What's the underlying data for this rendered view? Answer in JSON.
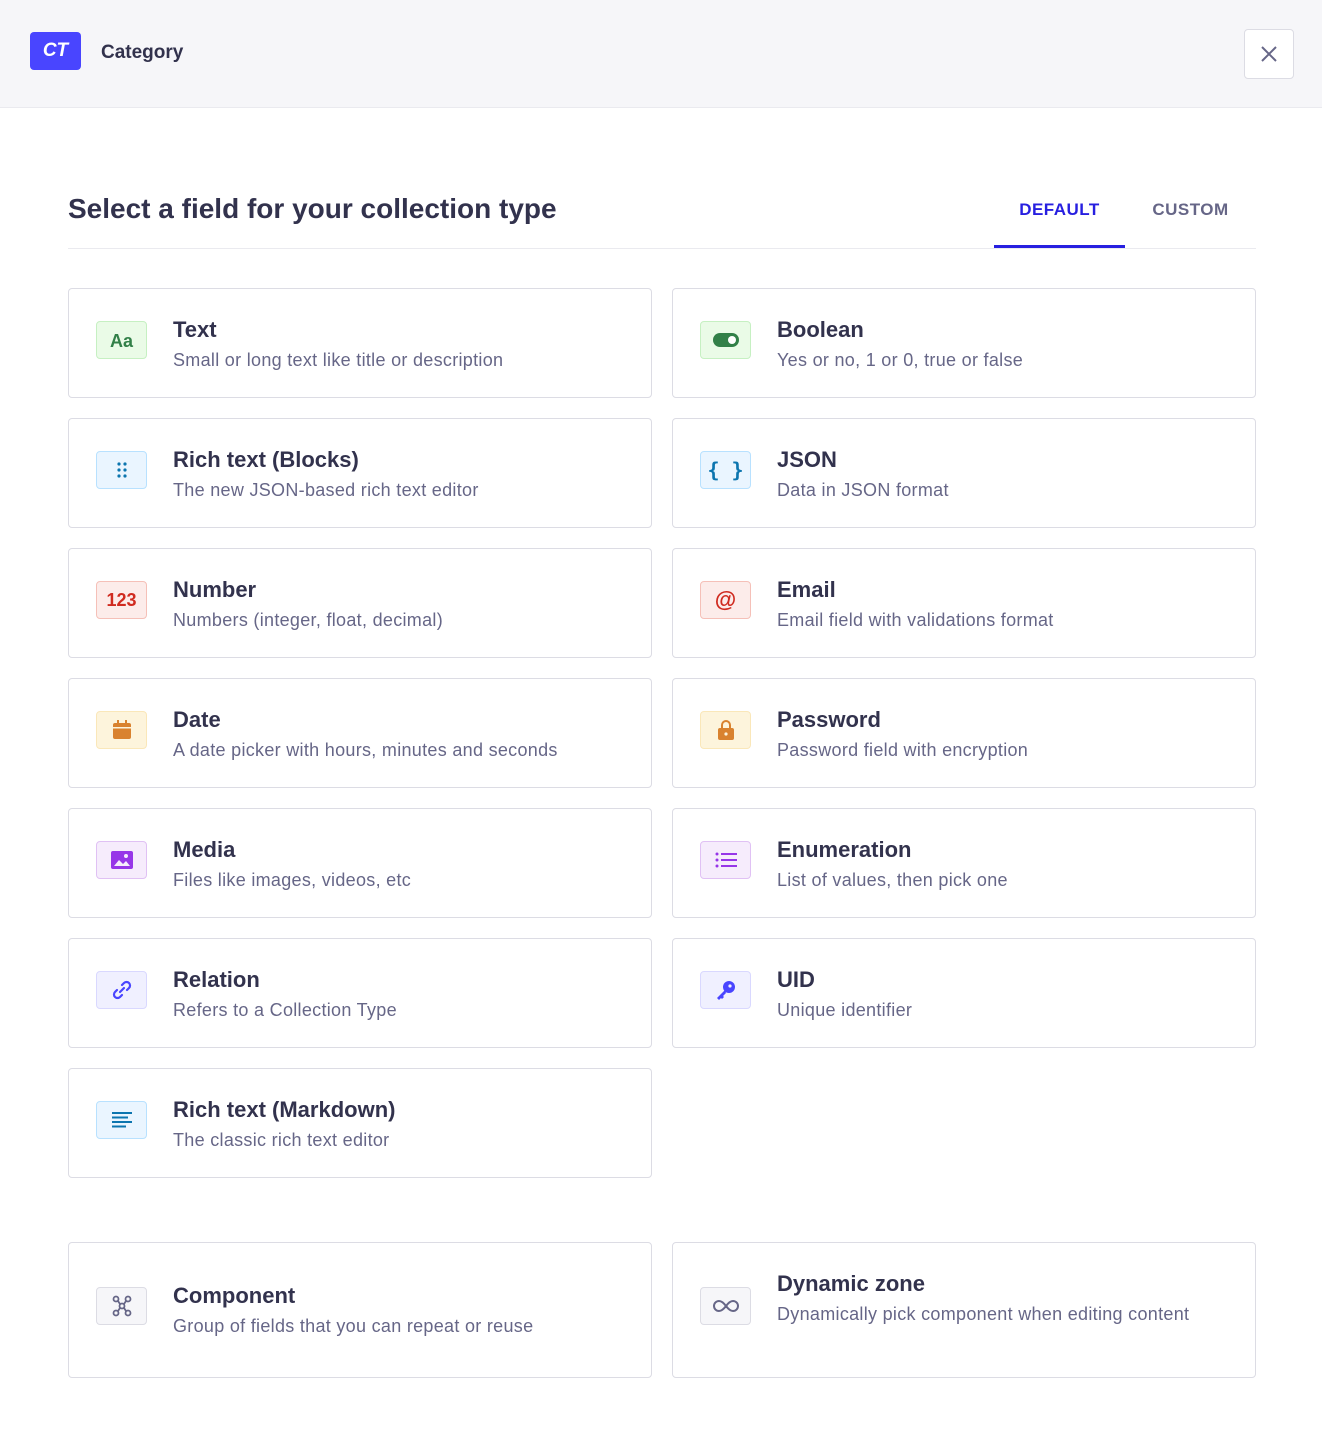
{
  "header": {
    "badge": "CT",
    "title": "Category",
    "close_icon": "close-icon"
  },
  "main": {
    "title": "Select a field for your collection type",
    "tabs": [
      {
        "label": "DEFAULT",
        "active": true
      },
      {
        "label": "CUSTOM",
        "active": false
      }
    ],
    "fields": [
      {
        "title": "Text",
        "description": "Small or long text like title or description",
        "icon": "text-aa-icon",
        "color": "#328048"
      },
      {
        "title": "Boolean",
        "description": "Yes or no, 1 or 0, true or false",
        "icon": "toggle-icon",
        "color": "#328048"
      },
      {
        "title": "Rich text (Blocks)",
        "description": "The new JSON-based rich text editor",
        "icon": "drag-dots-icon",
        "color": "#0c75af"
      },
      {
        "title": "JSON",
        "description": "Data in JSON format",
        "icon": "braces-icon",
        "color": "#0c75af"
      },
      {
        "title": "Number",
        "description": "Numbers (integer, float, decimal)",
        "icon": "number-123-icon",
        "icon_text": "123",
        "color": "#d02b20"
      },
      {
        "title": "Email",
        "description": "Email field with validations format",
        "icon": "at-sign-icon",
        "icon_text": "@",
        "color": "#d02b20"
      },
      {
        "title": "Date",
        "description": "A date picker with hours, minutes and seconds",
        "icon": "calendar-icon",
        "color": "#d9822f"
      },
      {
        "title": "Password",
        "description": "Password field with encryption",
        "icon": "lock-icon",
        "color": "#d9822f"
      },
      {
        "title": "Media",
        "description": "Files like images, videos, etc",
        "icon": "image-icon",
        "color": "#9736e8"
      },
      {
        "title": "Enumeration",
        "description": "List of values, then pick one",
        "icon": "list-icon",
        "color": "#9736e8"
      },
      {
        "title": "Relation",
        "description": "Refers to a Collection Type",
        "icon": "link-icon",
        "color": "#4945ff"
      },
      {
        "title": "UID",
        "description": "Unique identifier",
        "icon": "key-icon",
        "color": "#4945ff"
      },
      {
        "title": "Rich text (Markdown)",
        "description": "The classic rich text editor",
        "icon": "paragraph-icon",
        "color": "#0c75af"
      }
    ],
    "structures": [
      {
        "title": "Component",
        "description": "Group of fields that you can repeat or reuse",
        "icon": "component-icon",
        "color": "#666687"
      },
      {
        "title": "Dynamic zone",
        "description": "Dynamically pick component when editing content",
        "icon": "infinity-icon",
        "color": "#666687"
      }
    ]
  }
}
